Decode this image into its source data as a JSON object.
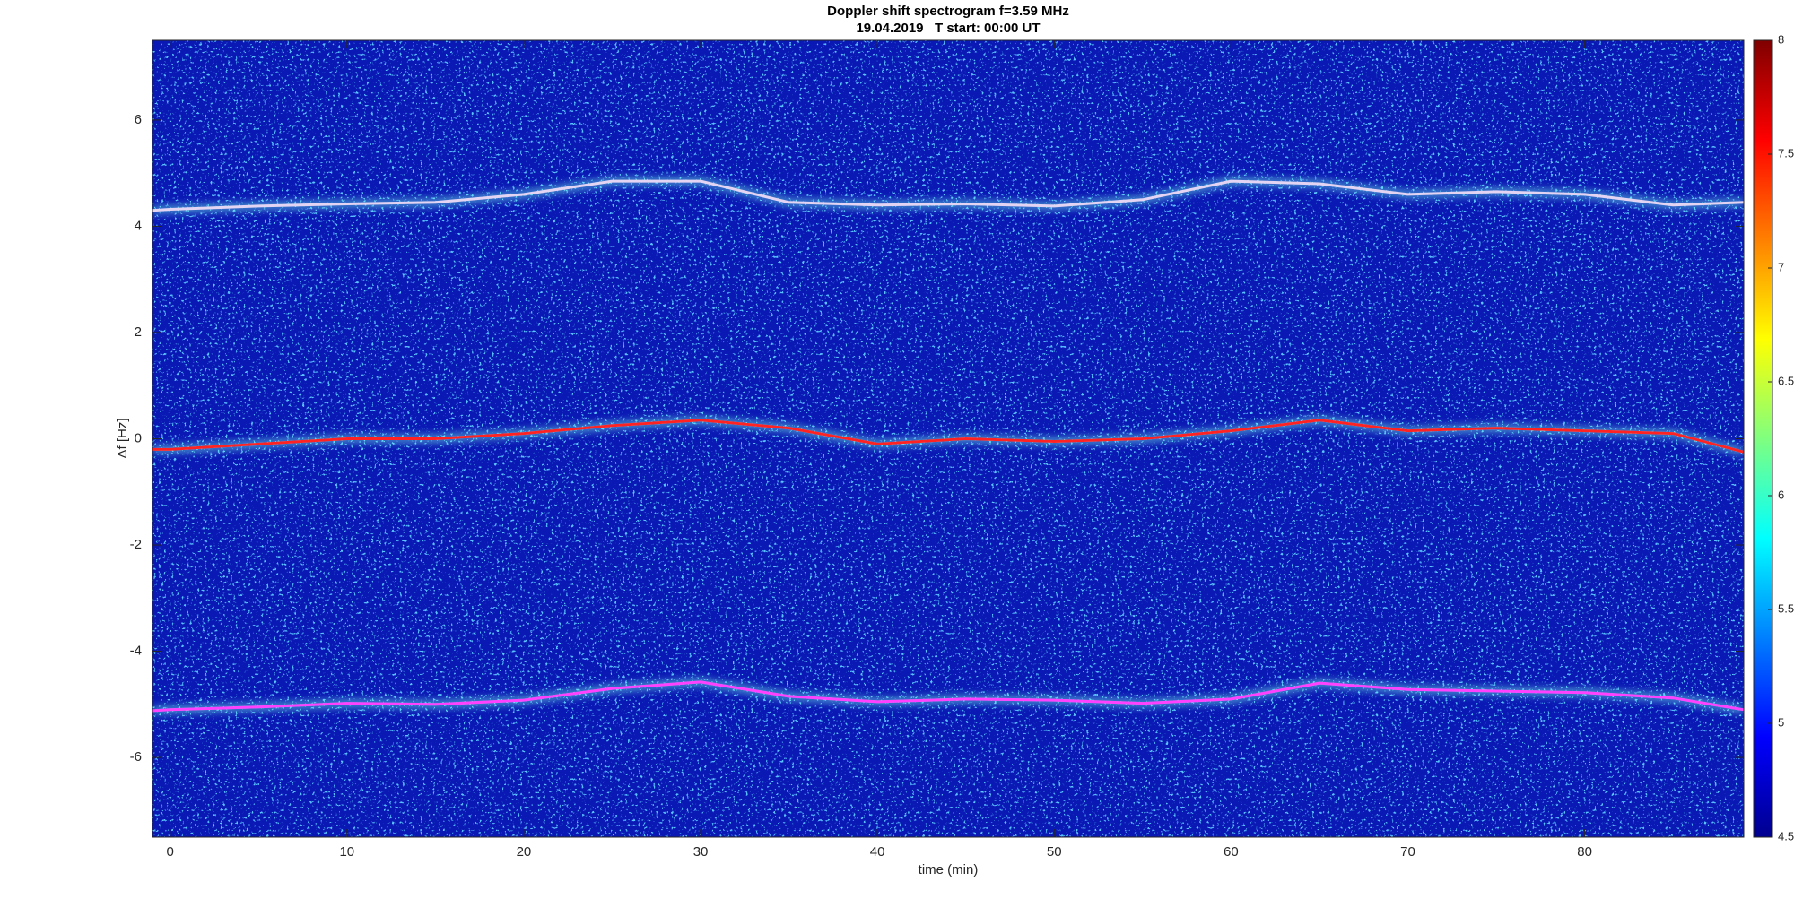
{
  "chart_data": {
    "type": "line",
    "title": "Doppler shift spectrogram f=3.59 MHz",
    "subtitle": "19.04.2019   T start: 00:00 UT",
    "x_label": "time (min)",
    "y_label": "Δf [Hz]",
    "xlim": [
      -1,
      89
    ],
    "xticks": [
      0,
      10,
      20,
      30,
      40,
      50,
      60,
      70,
      80
    ],
    "ylim": [
      -7.5,
      7.5
    ],
    "yticks": [
      -6,
      -4,
      -2,
      0,
      2,
      4,
      6
    ],
    "colorbar": {
      "lim": [
        4.5,
        8
      ],
      "ticks": [
        4.5,
        5,
        5.5,
        6,
        6.5,
        7,
        7.5,
        8
      ]
    },
    "series": [
      {
        "color": "#e4d4f4",
        "x": [
          -1,
          0,
          5,
          10,
          15,
          20,
          25,
          30,
          35,
          40,
          45,
          50,
          55,
          60,
          65,
          70,
          75,
          80,
          85,
          89
        ],
        "values": [
          4.3,
          4.32,
          4.38,
          4.42,
          4.45,
          4.6,
          4.85,
          4.85,
          4.45,
          4.4,
          4.42,
          4.38,
          4.5,
          4.85,
          4.8,
          4.6,
          4.65,
          4.6,
          4.4,
          4.45
        ]
      },
      {
        "color": "#ff2020",
        "x": [
          -1,
          0,
          5,
          10,
          15,
          20,
          25,
          30,
          35,
          40,
          45,
          50,
          55,
          60,
          65,
          70,
          75,
          80,
          85,
          89
        ],
        "values": [
          -0.2,
          -0.2,
          -0.1,
          0.0,
          0.0,
          0.1,
          0.25,
          0.35,
          0.2,
          -0.1,
          0.0,
          -0.05,
          0.0,
          0.15,
          0.35,
          0.15,
          0.2,
          0.15,
          0.1,
          -0.25
        ]
      },
      {
        "color": "#ff40ff",
        "x": [
          -1,
          0,
          5,
          10,
          15,
          20,
          25,
          30,
          35,
          40,
          45,
          50,
          55,
          60,
          65,
          70,
          75,
          80,
          85,
          89
        ],
        "values": [
          -5.12,
          -5.1,
          -5.05,
          -4.98,
          -5.0,
          -4.92,
          -4.7,
          -4.58,
          -4.85,
          -4.95,
          -4.9,
          -4.92,
          -4.98,
          -4.9,
          -4.6,
          -4.72,
          -4.75,
          -4.78,
          -4.88,
          -5.1
        ]
      }
    ]
  }
}
